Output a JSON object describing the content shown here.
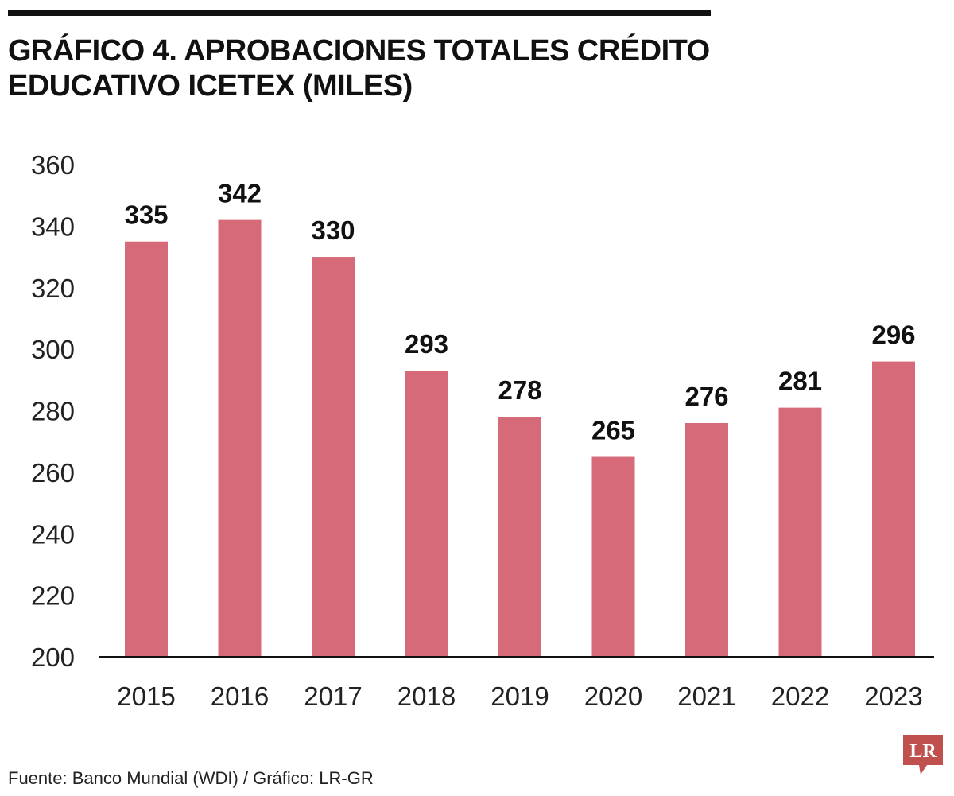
{
  "header": {
    "title": "GRÁFICO 4. APROBACIONES TOTALES CRÉDITO EDUCATIVO ICETEX (MILES)"
  },
  "footer": {
    "source": "Fuente: Banco Mundial (WDI) / Gráfico: LR-GR",
    "logo_text": "LR"
  },
  "colors": {
    "bar": "#d66a79",
    "logo": "#c0504d",
    "axis": "#111111",
    "text": "#111111"
  },
  "chart_data": {
    "type": "bar",
    "title": "GRÁFICO 4. APROBACIONES TOTALES CRÉDITO EDUCATIVO ICETEX (MILES)",
    "xlabel": "",
    "ylabel": "",
    "categories": [
      "2015",
      "2016",
      "2017",
      "2018",
      "2019",
      "2020",
      "2021",
      "2022",
      "2023"
    ],
    "values": [
      335,
      342,
      330,
      293,
      278,
      265,
      276,
      281,
      296
    ],
    "data_labels": [
      "335",
      "342",
      "330",
      "293",
      "278",
      "265",
      "276",
      "281",
      "296"
    ],
    "ylim": [
      200,
      360
    ],
    "yticks": [
      200,
      220,
      240,
      260,
      280,
      300,
      320,
      340,
      360
    ],
    "ytick_labels": [
      "200",
      "220",
      "240",
      "260",
      "280",
      "300",
      "320",
      "340",
      "360"
    ],
    "grid": false,
    "legend": "none"
  }
}
